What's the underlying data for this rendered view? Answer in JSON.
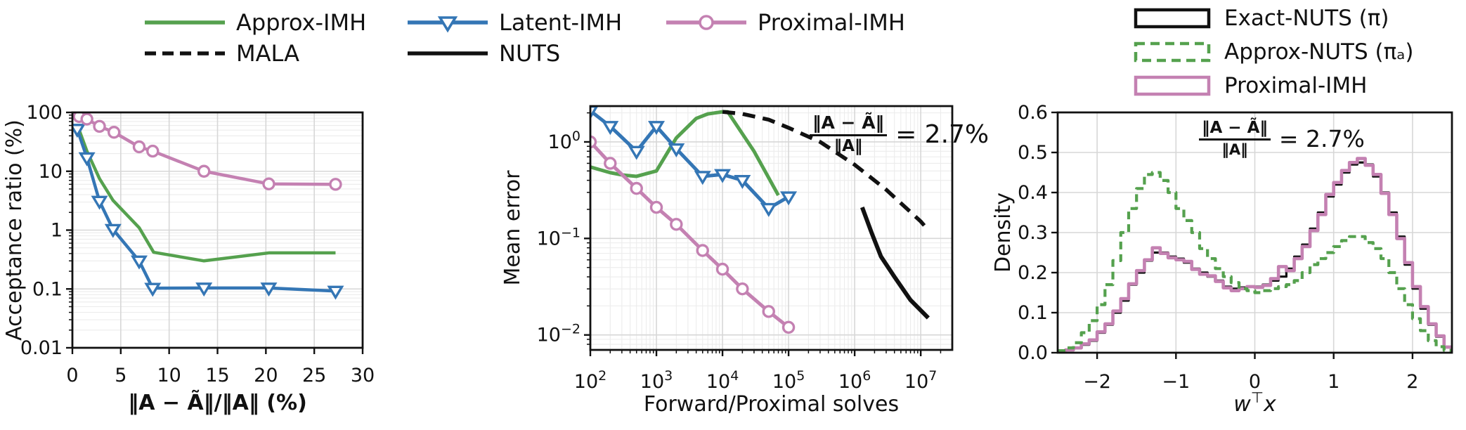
{
  "colors": {
    "approx_imh_green": "#55a14e",
    "latent_imh_blue": "#3476b5",
    "proximal_imh_pink": "#c481b2",
    "black": "#111111",
    "grid_major": "#d7d7d7",
    "grid_minor": "#ececec"
  },
  "legend_top": {
    "rows": [
      {
        "items": [
          {
            "label": "Approx-IMH",
            "color": "#55a14e",
            "style": "solid",
            "marker": "none"
          },
          {
            "label": "Latent-IMH",
            "color": "#3476b5",
            "style": "solid",
            "marker": "triangle-down"
          },
          {
            "label": "Proximal-IMH",
            "color": "#c481b2",
            "style": "solid",
            "marker": "circle"
          }
        ]
      },
      {
        "items": [
          {
            "label": "MALA",
            "color": "#111111",
            "style": "dashed",
            "marker": "none"
          },
          {
            "label": "NUTS",
            "color": "#111111",
            "style": "solid",
            "marker": "none"
          }
        ]
      }
    ]
  },
  "legend_right": {
    "items": [
      {
        "label": "Exact-NUTS (π)",
        "color": "#111111",
        "style": "solid"
      },
      {
        "label": "Approx-NUTS (πₐ)",
        "color": "#55a14e",
        "style": "dashed"
      },
      {
        "label": "Proximal-IMH",
        "color": "#c481b2",
        "style": "solid"
      }
    ]
  },
  "annotation": {
    "numerator": "‖A − Ã‖",
    "denominator": "‖A‖",
    "rhs": "= 2.7%"
  },
  "chart_data": [
    {
      "type": "line",
      "xlabel": "‖A − Ã‖/‖A‖ (%)",
      "ylabel": "Acceptance ratio (%)",
      "xscale": "linear",
      "yscale": "log",
      "xlim": [
        0,
        30
      ],
      "ylim": [
        0.01,
        100
      ],
      "xticks": [
        0,
        5,
        10,
        15,
        20,
        25,
        30
      ],
      "yticks": [
        100,
        10,
        1,
        0.1,
        0.01
      ],
      "grid": true,
      "series": [
        {
          "name": "Approx-IMH",
          "color": "#55a14e",
          "style": "solid",
          "marker": "none",
          "lw": 4.5,
          "x": [
            0.5,
            1.5,
            2.8,
            4.2,
            6.9,
            8.4,
            13.6,
            20.3,
            27.2
          ],
          "y": [
            62,
            22,
            7.5,
            3.2,
            1.1,
            0.42,
            0.3,
            0.41,
            0.41
          ]
        },
        {
          "name": "Latent-IMH",
          "color": "#3476b5",
          "style": "solid",
          "marker": "triangle-down",
          "lw": 4.5,
          "x": [
            0.5,
            1.5,
            2.8,
            4.2,
            6.9,
            8.3,
            13.6,
            20.3,
            27.2
          ],
          "y": [
            52,
            17,
            3.1,
            1.03,
            0.3,
            0.103,
            0.104,
            0.104,
            0.092
          ]
        },
        {
          "name": "Proximal-IMH",
          "color": "#c481b2",
          "style": "solid",
          "marker": "circle",
          "lw": 4.5,
          "x": [
            0.7,
            1.5,
            2.8,
            4.3,
            6.9,
            8.3,
            13.6,
            20.3,
            27.2
          ],
          "y": [
            85,
            77,
            58,
            46,
            26,
            22,
            10,
            6.1,
            6.0
          ]
        }
      ]
    },
    {
      "type": "line",
      "xlabel": "Forward/Proximal solves",
      "ylabel": "Mean error",
      "xscale": "log",
      "yscale": "log",
      "xlim": [
        100,
        30000000
      ],
      "ylim": [
        0.007,
        2.35
      ],
      "xticks": [
        100,
        1000,
        10000,
        100000,
        1000000,
        10000000
      ],
      "yticks": [
        1,
        0.1,
        0.01
      ],
      "grid": true,
      "series": [
        {
          "name": "Approx-IMH",
          "color": "#55a14e",
          "style": "solid",
          "marker": "none",
          "lw": 5,
          "x": [
            100,
            200,
            300,
            500,
            1000,
            2000,
            4000,
            6000,
            10000,
            12000,
            30000,
            70000
          ],
          "y": [
            0.55,
            0.48,
            0.455,
            0.44,
            0.5,
            1.1,
            1.75,
            1.95,
            2.05,
            2.05,
            0.8,
            0.28
          ]
        },
        {
          "name": "Latent-IMH",
          "color": "#3476b5",
          "style": "solid",
          "marker": "triangle-down",
          "lw": 5,
          "x": [
            100,
            200,
            500,
            1000,
            2000,
            5000,
            10000,
            20000,
            50000,
            100000
          ],
          "y": [
            2.1,
            1.45,
            0.8,
            1.45,
            0.85,
            0.44,
            0.46,
            0.4,
            0.205,
            0.27
          ]
        },
        {
          "name": "Proximal-IMH",
          "color": "#c481b2",
          "style": "solid",
          "marker": "circle",
          "lw": 5,
          "x": [
            100,
            200,
            500,
            1000,
            2000,
            5000,
            10000,
            20000,
            50000,
            100000
          ],
          "y": [
            1.0,
            0.6,
            0.33,
            0.21,
            0.14,
            0.075,
            0.048,
            0.03,
            0.0175,
            0.012
          ]
        },
        {
          "name": "MALA",
          "color": "#111111",
          "style": "dashed",
          "marker": "none",
          "lw": 5.5,
          "x": [
            10000,
            20000,
            50000,
            100000,
            300000,
            1000000,
            3000000,
            10000000,
            12000000
          ],
          "y": [
            2.05,
            1.95,
            1.7,
            1.4,
            1.0,
            0.58,
            0.32,
            0.15,
            0.13
          ]
        },
        {
          "name": "NUTS",
          "color": "#111111",
          "style": "solid",
          "marker": "none",
          "lw": 6,
          "x": [
            1300000,
            1800000,
            2500000,
            4000000,
            7000000,
            13000000
          ],
          "y": [
            0.21,
            0.115,
            0.065,
            0.04,
            0.023,
            0.015
          ]
        }
      ]
    },
    {
      "type": "step",
      "xlabel": "w⊤x",
      "ylabel": "Density",
      "xscale": "linear",
      "yscale": "linear",
      "xlim": [
        -2.5,
        2.5
      ],
      "ylim": [
        0,
        0.6
      ],
      "xticks": [
        -2,
        -1,
        0,
        1,
        2
      ],
      "yticks": [
        0,
        0.1,
        0.2,
        0.3,
        0.4,
        0.5,
        0.6
      ],
      "grid": true,
      "bin_start": -2.5,
      "bin_width": 0.1,
      "series": [
        {
          "name": "Exact-NUTS (π)",
          "color": "#111111",
          "style": "solid",
          "lw": 3.2,
          "values": [
            0.003,
            0.006,
            0.012,
            0.02,
            0.03,
            0.05,
            0.07,
            0.1,
            0.13,
            0.17,
            0.2,
            0.23,
            0.25,
            0.25,
            0.24,
            0.235,
            0.225,
            0.21,
            0.2,
            0.19,
            0.18,
            0.165,
            0.16,
            0.163,
            0.165,
            0.165,
            0.17,
            0.18,
            0.19,
            0.21,
            0.24,
            0.27,
            0.31,
            0.35,
            0.39,
            0.42,
            0.45,
            0.47,
            0.475,
            0.47,
            0.44,
            0.4,
            0.35,
            0.29,
            0.22,
            0.16,
            0.11,
            0.07,
            0.04,
            0.015
          ]
        },
        {
          "name": "Proximal-IMH",
          "color": "#c481b2",
          "style": "solid",
          "lw": 4.6,
          "values": [
            0.004,
            0.007,
            0.012,
            0.022,
            0.032,
            0.052,
            0.072,
            0.104,
            0.135,
            0.172,
            0.205,
            0.232,
            0.262,
            0.248,
            0.237,
            0.232,
            0.228,
            0.208,
            0.196,
            0.192,
            0.178,
            0.162,
            0.155,
            0.16,
            0.165,
            0.163,
            0.168,
            0.185,
            0.215,
            0.205,
            0.235,
            0.265,
            0.305,
            0.345,
            0.395,
            0.425,
            0.455,
            0.475,
            0.485,
            0.468,
            0.445,
            0.398,
            0.345,
            0.285,
            0.225,
            0.165,
            0.115,
            0.072,
            0.042,
            0.014
          ]
        },
        {
          "name": "Approx-NUTS (πₐ)",
          "color": "#55a14e",
          "style": "dashed",
          "lw": 4.2,
          "values": [
            0.005,
            0.012,
            0.025,
            0.05,
            0.08,
            0.12,
            0.17,
            0.23,
            0.3,
            0.36,
            0.41,
            0.445,
            0.45,
            0.43,
            0.4,
            0.36,
            0.33,
            0.3,
            0.26,
            0.235,
            0.21,
            0.19,
            0.175,
            0.16,
            0.155,
            0.15,
            0.155,
            0.16,
            0.165,
            0.17,
            0.18,
            0.2,
            0.22,
            0.235,
            0.25,
            0.265,
            0.28,
            0.29,
            0.29,
            0.275,
            0.26,
            0.235,
            0.2,
            0.16,
            0.12,
            0.085,
            0.055,
            0.03,
            0.015,
            0.006
          ]
        }
      ]
    }
  ]
}
